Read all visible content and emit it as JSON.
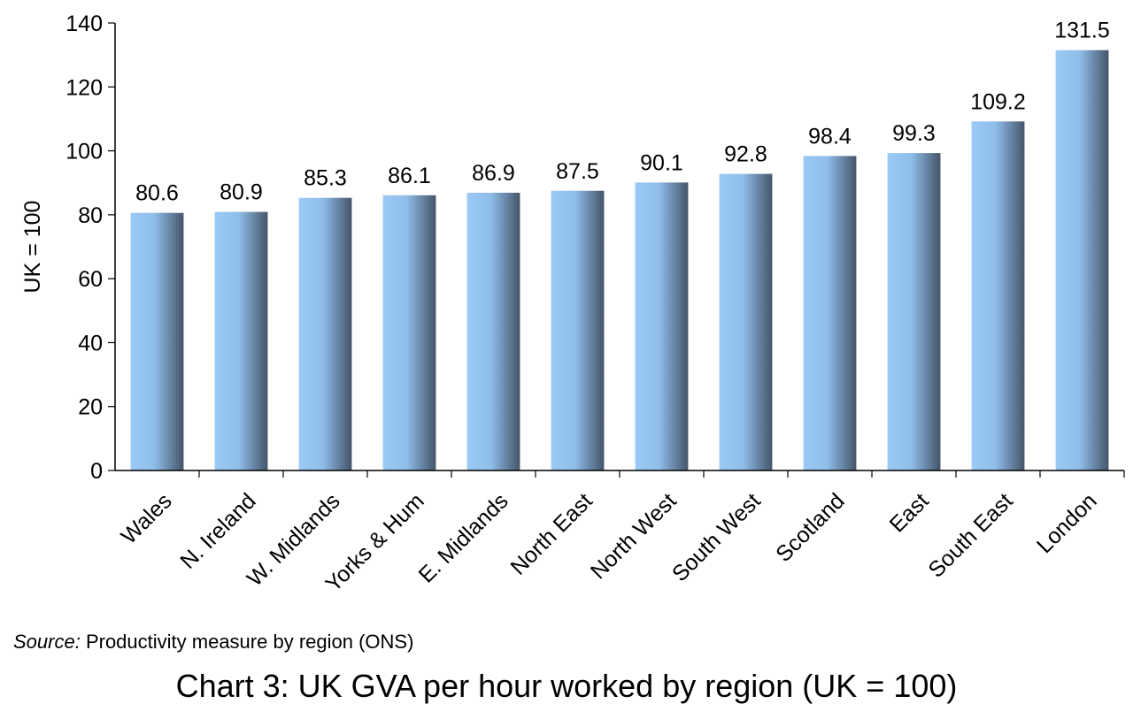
{
  "chart_data": {
    "type": "bar",
    "categories": [
      "Wales",
      "N. Ireland",
      "W. Midlands",
      "Yorks & Hum",
      "E. Midlands",
      "North East",
      "North West",
      "South West",
      "Scotland",
      "East",
      "South East",
      "London"
    ],
    "values": [
      80.6,
      80.9,
      85.3,
      86.1,
      86.9,
      87.5,
      90.1,
      92.8,
      98.4,
      99.3,
      109.2,
      131.5
    ],
    "data_labels": [
      "80.6",
      "80.9",
      "85.3",
      "86.1",
      "86.9",
      "87.5",
      "90.1",
      "92.8",
      "98.4",
      "99.3",
      "109.2",
      "131.5"
    ],
    "ylabel": "UK = 100",
    "xlabel": "",
    "ylim": [
      0,
      140
    ],
    "yticks": [
      0,
      20,
      40,
      60,
      80,
      100,
      120,
      140
    ],
    "grid": false,
    "legend": "none",
    "bar_gradient": [
      "#9ccaf6",
      "#45556a"
    ]
  },
  "source": {
    "label": "Source:",
    "text": " Productivity measure by region (ONS)"
  },
  "caption": "Chart 3: UK GVA per hour worked by region (UK = 100)"
}
